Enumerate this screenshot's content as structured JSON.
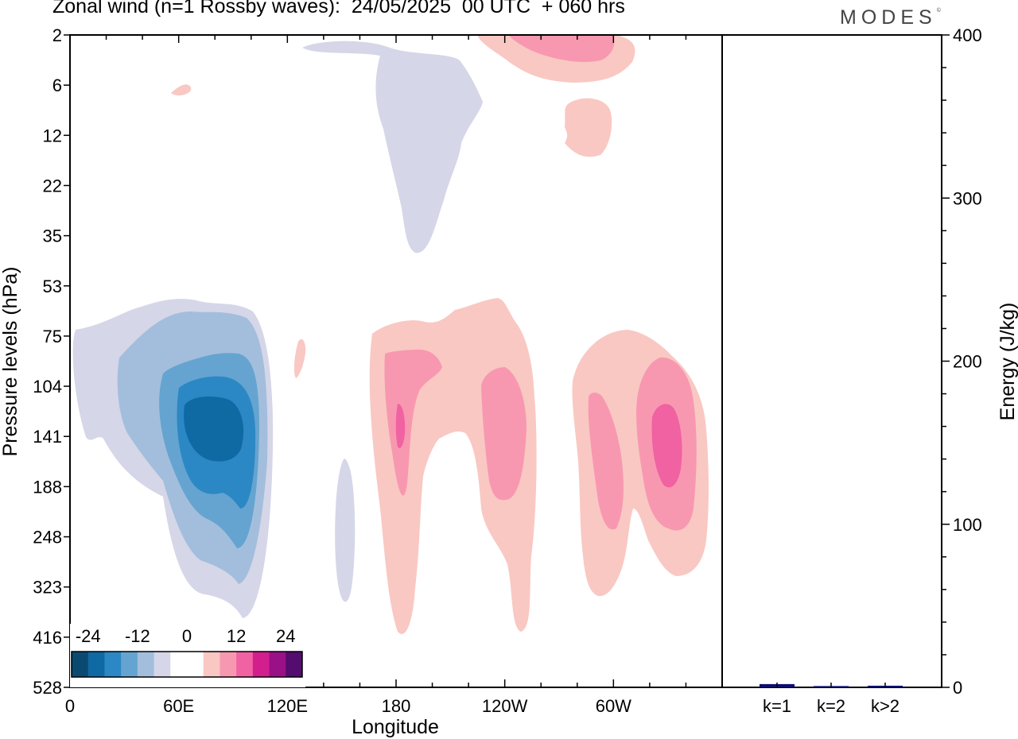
{
  "title": "Zonal wind (n=1 Rossby waves):  24/05/2025  00 UTC  + 060 hrs",
  "logo": "MODES",
  "logo_mark": "©",
  "colors": {
    "neg": [
      "#0b4a70",
      "#0f69a3",
      "#2b88c4",
      "#65a4d0",
      "#a3bedc",
      "#d5d6e8"
    ],
    "pos": [
      "#f9c8c3",
      "#f898b0",
      "#f062a1",
      "#d31f8e",
      "#9a1087",
      "#540c6e"
    ],
    "bar": "#0e0e70"
  },
  "chart_data": [
    {
      "type": "heatmap",
      "title": "Zonal wind (n=1 Rossby waves):  24/05/2025  00 UTC  + 060 hrs",
      "xlabel": "Longitude",
      "ylabel": "Pressure levels (hPa)",
      "x_ticks": [
        "0",
        "60E",
        "120E",
        "180",
        "120W",
        "60W"
      ],
      "y_ticks": [
        "2",
        "6",
        "12",
        "22",
        "35",
        "53",
        "75",
        "104",
        "141",
        "188",
        "248",
        "323",
        "416",
        "528"
      ],
      "colorbar_labels": [
        "-24",
        "-12",
        "0",
        "12",
        "24"
      ],
      "levels": [
        -28,
        -24,
        -20,
        -16,
        -12,
        -8,
        -4,
        4,
        8,
        12,
        16,
        20,
        24,
        28
      ],
      "features": [
        {
          "sign": "neg",
          "peak": -24,
          "lon": 80,
          "level": 141
        },
        {
          "sign": "neg",
          "peak": -4,
          "lon": 195,
          "level": 12
        },
        {
          "sign": "neg",
          "peak": -4,
          "lon": 145,
          "level": 248
        },
        {
          "sign": "pos",
          "peak": 12,
          "lon": 182,
          "level": 141
        },
        {
          "sign": "pos",
          "peak": 8,
          "lon": 225,
          "level": 141
        },
        {
          "sign": "pos",
          "peak": 12,
          "lon": 325,
          "level": 141
        },
        {
          "sign": "pos",
          "peak": 8,
          "lon": 260,
          "level": 2
        }
      ]
    },
    {
      "type": "bar",
      "ylabel": "Energy (J/kg)",
      "categories": [
        "k=1",
        "k=2",
        "k>2"
      ],
      "values": [
        2,
        0.8,
        1
      ],
      "ylim": [
        0,
        400
      ],
      "y_ticks": [
        "0",
        "100",
        "200",
        "300",
        "400"
      ]
    }
  ]
}
